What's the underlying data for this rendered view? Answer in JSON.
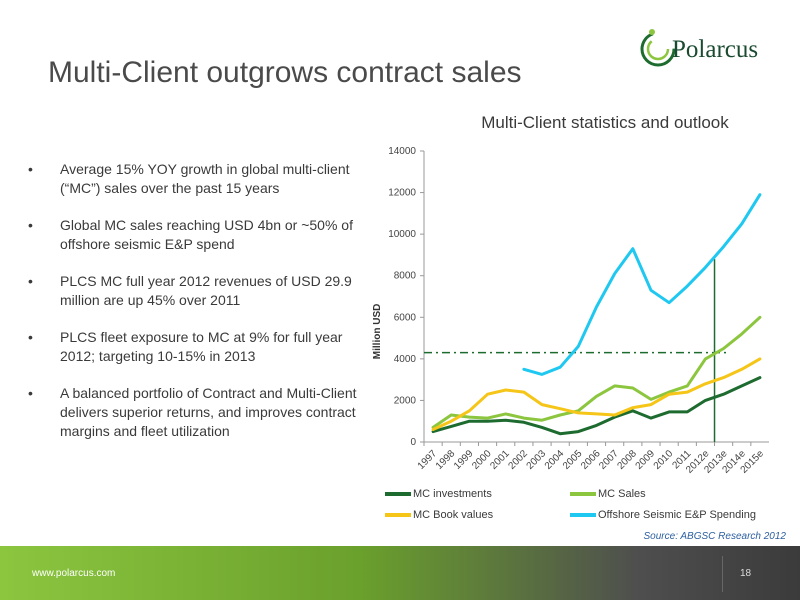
{
  "slide": {
    "title": "Multi-Client outgrows contract sales",
    "logo_text": "Polarcus",
    "bullets": [
      "Average 15% YOY growth in global multi-client (“MC”) sales over the past 15 years",
      "Global MC sales reaching USD 4bn or ~50% of offshore seismic E&P spend",
      "PLCS MC full year 2012 revenues of USD 29.9 million are up 45% over 2011",
      "PLCS fleet exposure to MC at 9% for full year 2012; targeting 10-15% in 2013",
      "A balanced portfolio of Contract and Multi-Client delivers superior returns, and improves contract margins and fleet utilization"
    ],
    "source": "Source: ABGSC Research 2012",
    "footer_url": "www.polarcus.com",
    "page_number": "18"
  },
  "colors": {
    "mc_investments": "#1e6b30",
    "mc_sales": "#8cc63f",
    "mc_book_values": "#f5c518",
    "offshore_spend": "#1ec8f0",
    "dashed_reference": "#1e6b30",
    "vertical_marker": "#1e6b30"
  },
  "chart_data": {
    "type": "line",
    "title": "Multi-Client statistics and outlook",
    "xlabel": "",
    "ylabel": "Million USD",
    "ylim": [
      0,
      14000
    ],
    "yticks": [
      "0",
      "2000",
      "4000",
      "6000",
      "8000",
      "10000",
      "12000",
      "14000"
    ],
    "categories": [
      "1997",
      "1998",
      "1999",
      "2000",
      "2001",
      "2002",
      "2003",
      "2004",
      "2005",
      "2006",
      "2007",
      "2008",
      "2009",
      "2010",
      "2011",
      "2012e",
      "2013e",
      "2014e",
      "2015e"
    ],
    "series": [
      {
        "name": "MC investments",
        "values": [
          500,
          750,
          1000,
          1000,
          1050,
          950,
          700,
          400,
          500,
          800,
          1200,
          1500,
          1150,
          1450,
          1450,
          2000,
          2300,
          2700,
          3100
        ]
      },
      {
        "name": "MC Sales",
        "values": [
          700,
          1300,
          1200,
          1150,
          1350,
          1150,
          1050,
          1300,
          1500,
          2200,
          2700,
          2600,
          2050,
          2400,
          2700,
          4000,
          4500,
          5200,
          6000
        ]
      },
      {
        "name": "MC Book values",
        "values": [
          600,
          1000,
          1500,
          2300,
          2500,
          2400,
          1800,
          1600,
          1400,
          1350,
          1300,
          1650,
          1800,
          2300,
          2400,
          2800,
          3100,
          3500,
          4000
        ]
      },
      {
        "name": "Offshore Seismic E&P Spending",
        "values": [
          null,
          null,
          null,
          null,
          null,
          3500,
          3250,
          3600,
          4600,
          6500,
          8100,
          9300,
          7300,
          6700,
          7500,
          8400,
          9400,
          10500,
          11900
        ]
      }
    ],
    "reference_line": {
      "value": 4300,
      "style": "dash-dot"
    },
    "vertical_marker": {
      "at": "2012e"
    },
    "legend": {
      "position": "bottom",
      "items": [
        "MC investments",
        "MC Sales",
        "MC Book values",
        "Offshore Seismic E&P Spending"
      ]
    }
  }
}
